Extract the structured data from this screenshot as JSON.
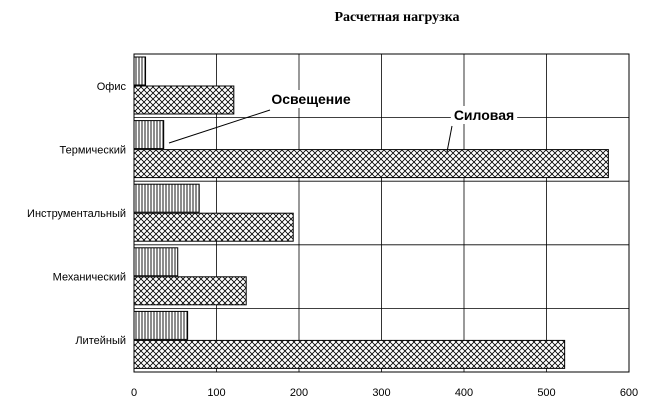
{
  "chart_data": {
    "type": "bar",
    "orientation": "horizontal",
    "title": "Расчетная нагрузка",
    "xlabel": "",
    "ylabel": "",
    "xlim": [
      0,
      600
    ],
    "x_ticks": [
      0,
      100,
      200,
      300,
      400,
      500,
      600
    ],
    "grid": true,
    "categories": [
      "Офис",
      "Термический",
      "Инструментальный",
      "Механический",
      "Литейный"
    ],
    "series": [
      {
        "name": "Освещение",
        "values": [
          14,
          36,
          79,
          53,
          65
        ],
        "pattern": "vertical-lines"
      },
      {
        "name": "Силовая",
        "values": [
          121,
          575,
          193,
          136,
          522
        ],
        "pattern": "crosshatch"
      }
    ],
    "annotations": [
      {
        "text": "Освещение",
        "series": 0,
        "category": "Термический"
      },
      {
        "text": "Силовая",
        "series": 1,
        "category": "Термический"
      }
    ],
    "colors": {
      "bar_stroke": "#000000",
      "background": "#ffffff",
      "grid": "#000000"
    }
  }
}
